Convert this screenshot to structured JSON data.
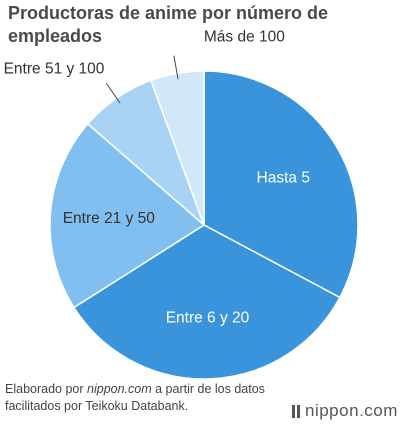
{
  "title": "Productoras de anime por número de empleados",
  "footer": {
    "prefix": "Elaborado por ",
    "source_site": "nippon.com",
    "suffix": " a partir de los datos facilitados por Teikoku Databank."
  },
  "logo": {
    "part1": "nippon",
    "dot": ".",
    "part2": "com"
  },
  "chart_data": {
    "type": "pie",
    "title": "Productoras de anime por número de empleados",
    "slices": [
      {
        "label": "Hasta 5",
        "value": 32.8,
        "color": "#3a94dc"
      },
      {
        "label": "Entre 6 y 20",
        "value": 33.2,
        "color": "#3a94dc"
      },
      {
        "label": "Entre 21 y 50",
        "value": 20.4,
        "color": "#80bff0"
      },
      {
        "label": "Entre 51 y 100",
        "value": 8.0,
        "color": "#a8d3f5"
      },
      {
        "label": "Más de 100",
        "value": 5.6,
        "color": "#d1e8fb"
      }
    ]
  }
}
